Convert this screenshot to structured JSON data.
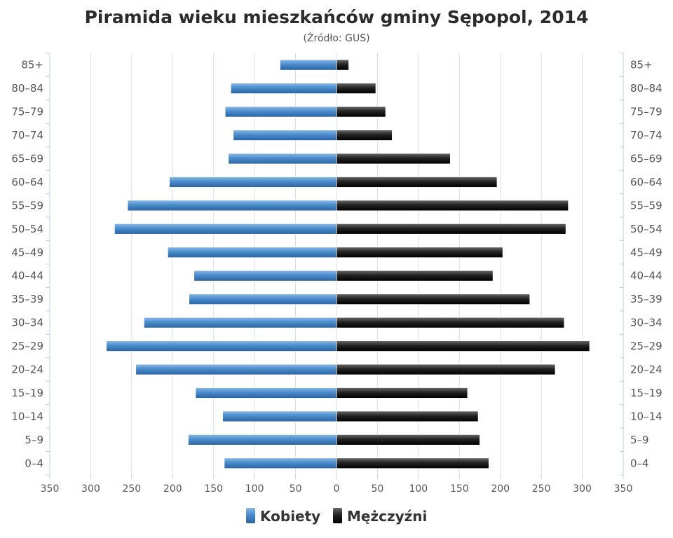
{
  "chart_data": {
    "type": "bar",
    "orientation": "horizontal",
    "layout": "population-pyramid",
    "title": "Piramida wieku mieszkańców gminy Sępopol, 2014",
    "subtitle": "(Źródło: GUS)",
    "categories": [
      "85+",
      "80–84",
      "75–79",
      "70–74",
      "65–69",
      "60–64",
      "55–59",
      "50–54",
      "45–49",
      "40–44",
      "35–39",
      "30–34",
      "25–29",
      "20–24",
      "15–19",
      "10–14",
      "5–9",
      "0–4"
    ],
    "series": [
      {
        "name": "Kobiety",
        "color": "#3f7fc0",
        "side": "left",
        "values": [
          69,
          129,
          136,
          126,
          132,
          204,
          255,
          271,
          206,
          174,
          180,
          235,
          281,
          245,
          172,
          139,
          181,
          137
        ]
      },
      {
        "name": "Mężczyźni",
        "color": "#1a1a1a",
        "side": "right",
        "values": [
          15,
          48,
          60,
          68,
          139,
          196,
          283,
          280,
          203,
          191,
          236,
          278,
          309,
          267,
          160,
          173,
          175,
          186
        ]
      }
    ],
    "xlim": [
      -350,
      350
    ],
    "xticks": [
      "350",
      "300",
      "250",
      "200",
      "150",
      "100",
      "50",
      "0",
      "50",
      "100",
      "150",
      "200",
      "250",
      "300",
      "350"
    ],
    "grid": true,
    "legend_position": "bottom-center"
  }
}
